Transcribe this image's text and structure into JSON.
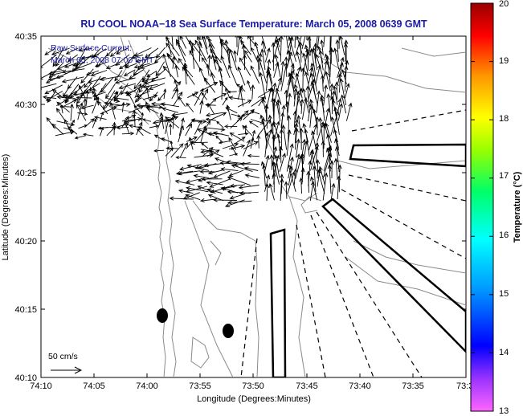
{
  "title": "RU COOL  NOAA−18  Sea Surface Temperature:  March 05, 2008 0639 GMT",
  "annotation": {
    "line1": "Raw Surface Current:",
    "line2": "March 05, 2008 07:00 GMT"
  },
  "x_axis": {
    "label": "Longitude (Degrees:Minutes)",
    "ticks": [
      "74:10",
      "74:05",
      "74:00",
      "73:55",
      "73:50",
      "73:45",
      "73:40",
      "73:35",
      "73:3"
    ]
  },
  "y_axis": {
    "label": "Latitude (Degrees:Minutes)",
    "ticks": [
      "40:35",
      "40:30",
      "40:25",
      "40:20",
      "40:15",
      "40:10"
    ]
  },
  "colorbar": {
    "label": "Temperature (°C)",
    "ticks": [
      "20",
      "19",
      "18",
      "17",
      "16",
      "15",
      "14",
      "13"
    ],
    "min": 13,
    "max": 20,
    "colors": [
      "#ff33ff",
      "#0000ff",
      "#00aaff",
      "#00ffff",
      "#00ff66",
      "#aaff00",
      "#ffff00",
      "#ff9900",
      "#ff0000",
      "#aa0000"
    ]
  },
  "scale_bar": {
    "label": "50 cm/s"
  },
  "colors": {
    "title": "#1a1aa8",
    "annotation": "#1a1aa8",
    "coastline": "#888888",
    "vectors": "#000000"
  }
}
